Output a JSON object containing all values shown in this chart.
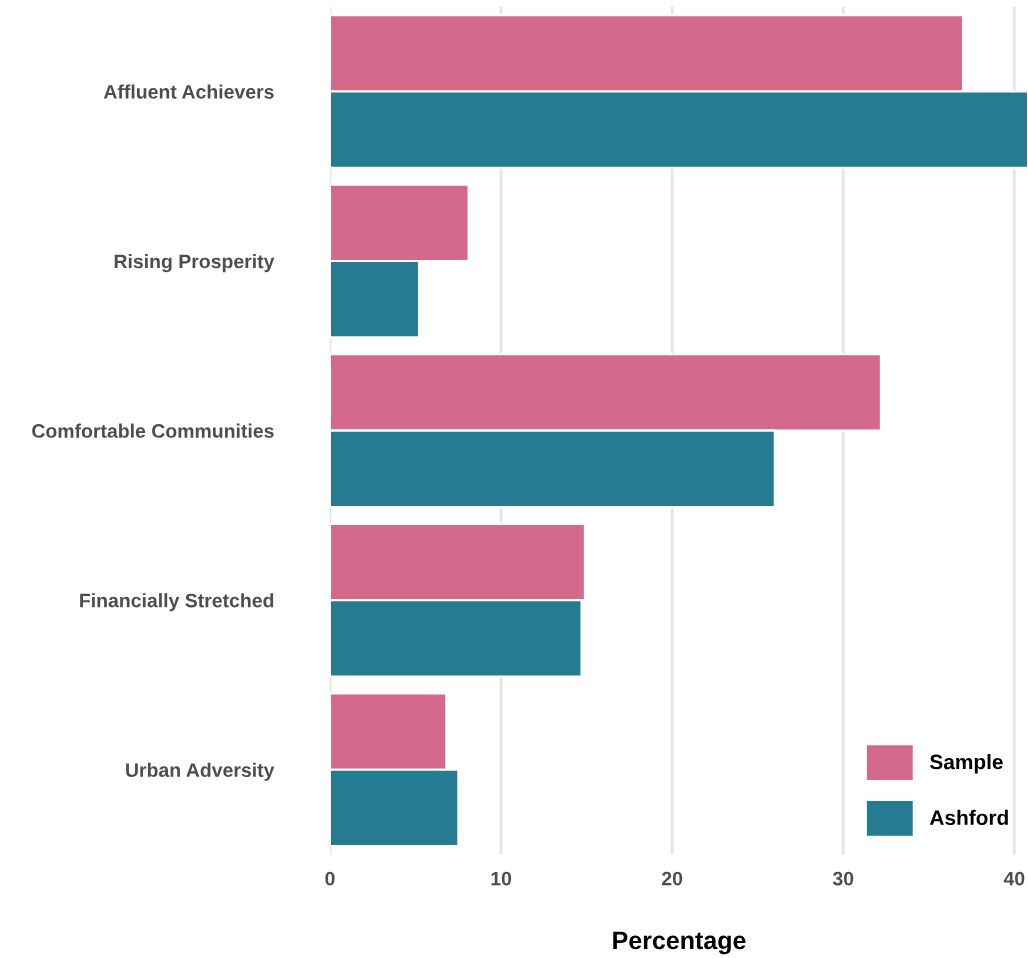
{
  "chart_data": {
    "type": "bar",
    "orientation": "horizontal",
    "xlabel": "Percentage",
    "categories": [
      "Affluent Achievers",
      "Rising Prosperity",
      "Comfortable Communities",
      "Financially Stretched",
      "Urban Adversity"
    ],
    "series": [
      {
        "name": "Sample",
        "color": "#d4698b",
        "values": [
          37.0,
          8.1,
          32.2,
          14.9,
          6.8
        ]
      },
      {
        "name": "Ashford",
        "color": "#257b92",
        "values": [
          40.8,
          5.2,
          26.0,
          14.7,
          7.5
        ]
      }
    ],
    "xlim": [
      0,
      40.8
    ],
    "xticks": [
      0,
      10,
      20,
      30,
      40
    ],
    "grid": "x",
    "legend": "bottom right"
  }
}
